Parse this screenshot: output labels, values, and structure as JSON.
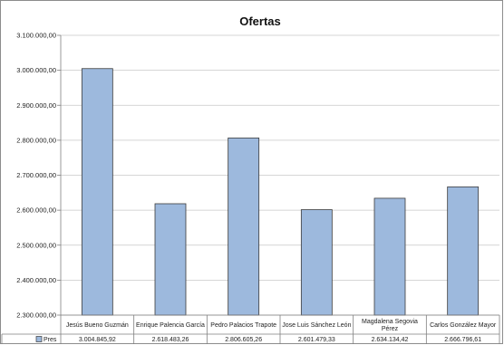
{
  "chart_data": {
    "type": "bar",
    "title": "Ofertas",
    "categories": [
      [
        "Jesús Bueno Guzmán"
      ],
      [
        "Enrique Palencia García"
      ],
      [
        "Pedro Palacios Trapote"
      ],
      [
        "Jose Luis Sánchez León"
      ],
      [
        "Magdalena Segovia",
        "Pérez"
      ],
      [
        "Carlos González Mayor"
      ]
    ],
    "series": [
      {
        "name": "Pres",
        "values": [
          3004845.92,
          2618483.26,
          2806605.26,
          2601479.33,
          2634134.42,
          2666796.61
        ],
        "labels": [
          "3.004.845,92",
          "2.618.483,26",
          "2.806.605,26",
          "2.601.479,33",
          "2.634.134,42",
          "2.666.796,61"
        ]
      }
    ],
    "ylim": [
      2300000,
      3100000
    ],
    "yticks": [
      {
        "value": 2300000,
        "label": "2.300.000,00"
      },
      {
        "value": 2400000,
        "label": "2.400.000,00"
      },
      {
        "value": 2500000,
        "label": "2.500.000,00"
      },
      {
        "value": 2600000,
        "label": "2.600.000,00"
      },
      {
        "value": 2700000,
        "label": "2.700.000,00"
      },
      {
        "value": 2800000,
        "label": "2.800.000,00"
      },
      {
        "value": 2900000,
        "label": "2.900.000,00"
      },
      {
        "value": 3000000,
        "label": "3.000.000,00"
      },
      {
        "value": 3100000,
        "label": "3.100.000,00"
      }
    ],
    "grid": true,
    "data_table": true,
    "colors": {
      "bar_fill": "#9db9dd",
      "bar_stroke": "#3b3b3b",
      "grid": "#c8c8c8",
      "axis": "#7f7f7f"
    }
  }
}
